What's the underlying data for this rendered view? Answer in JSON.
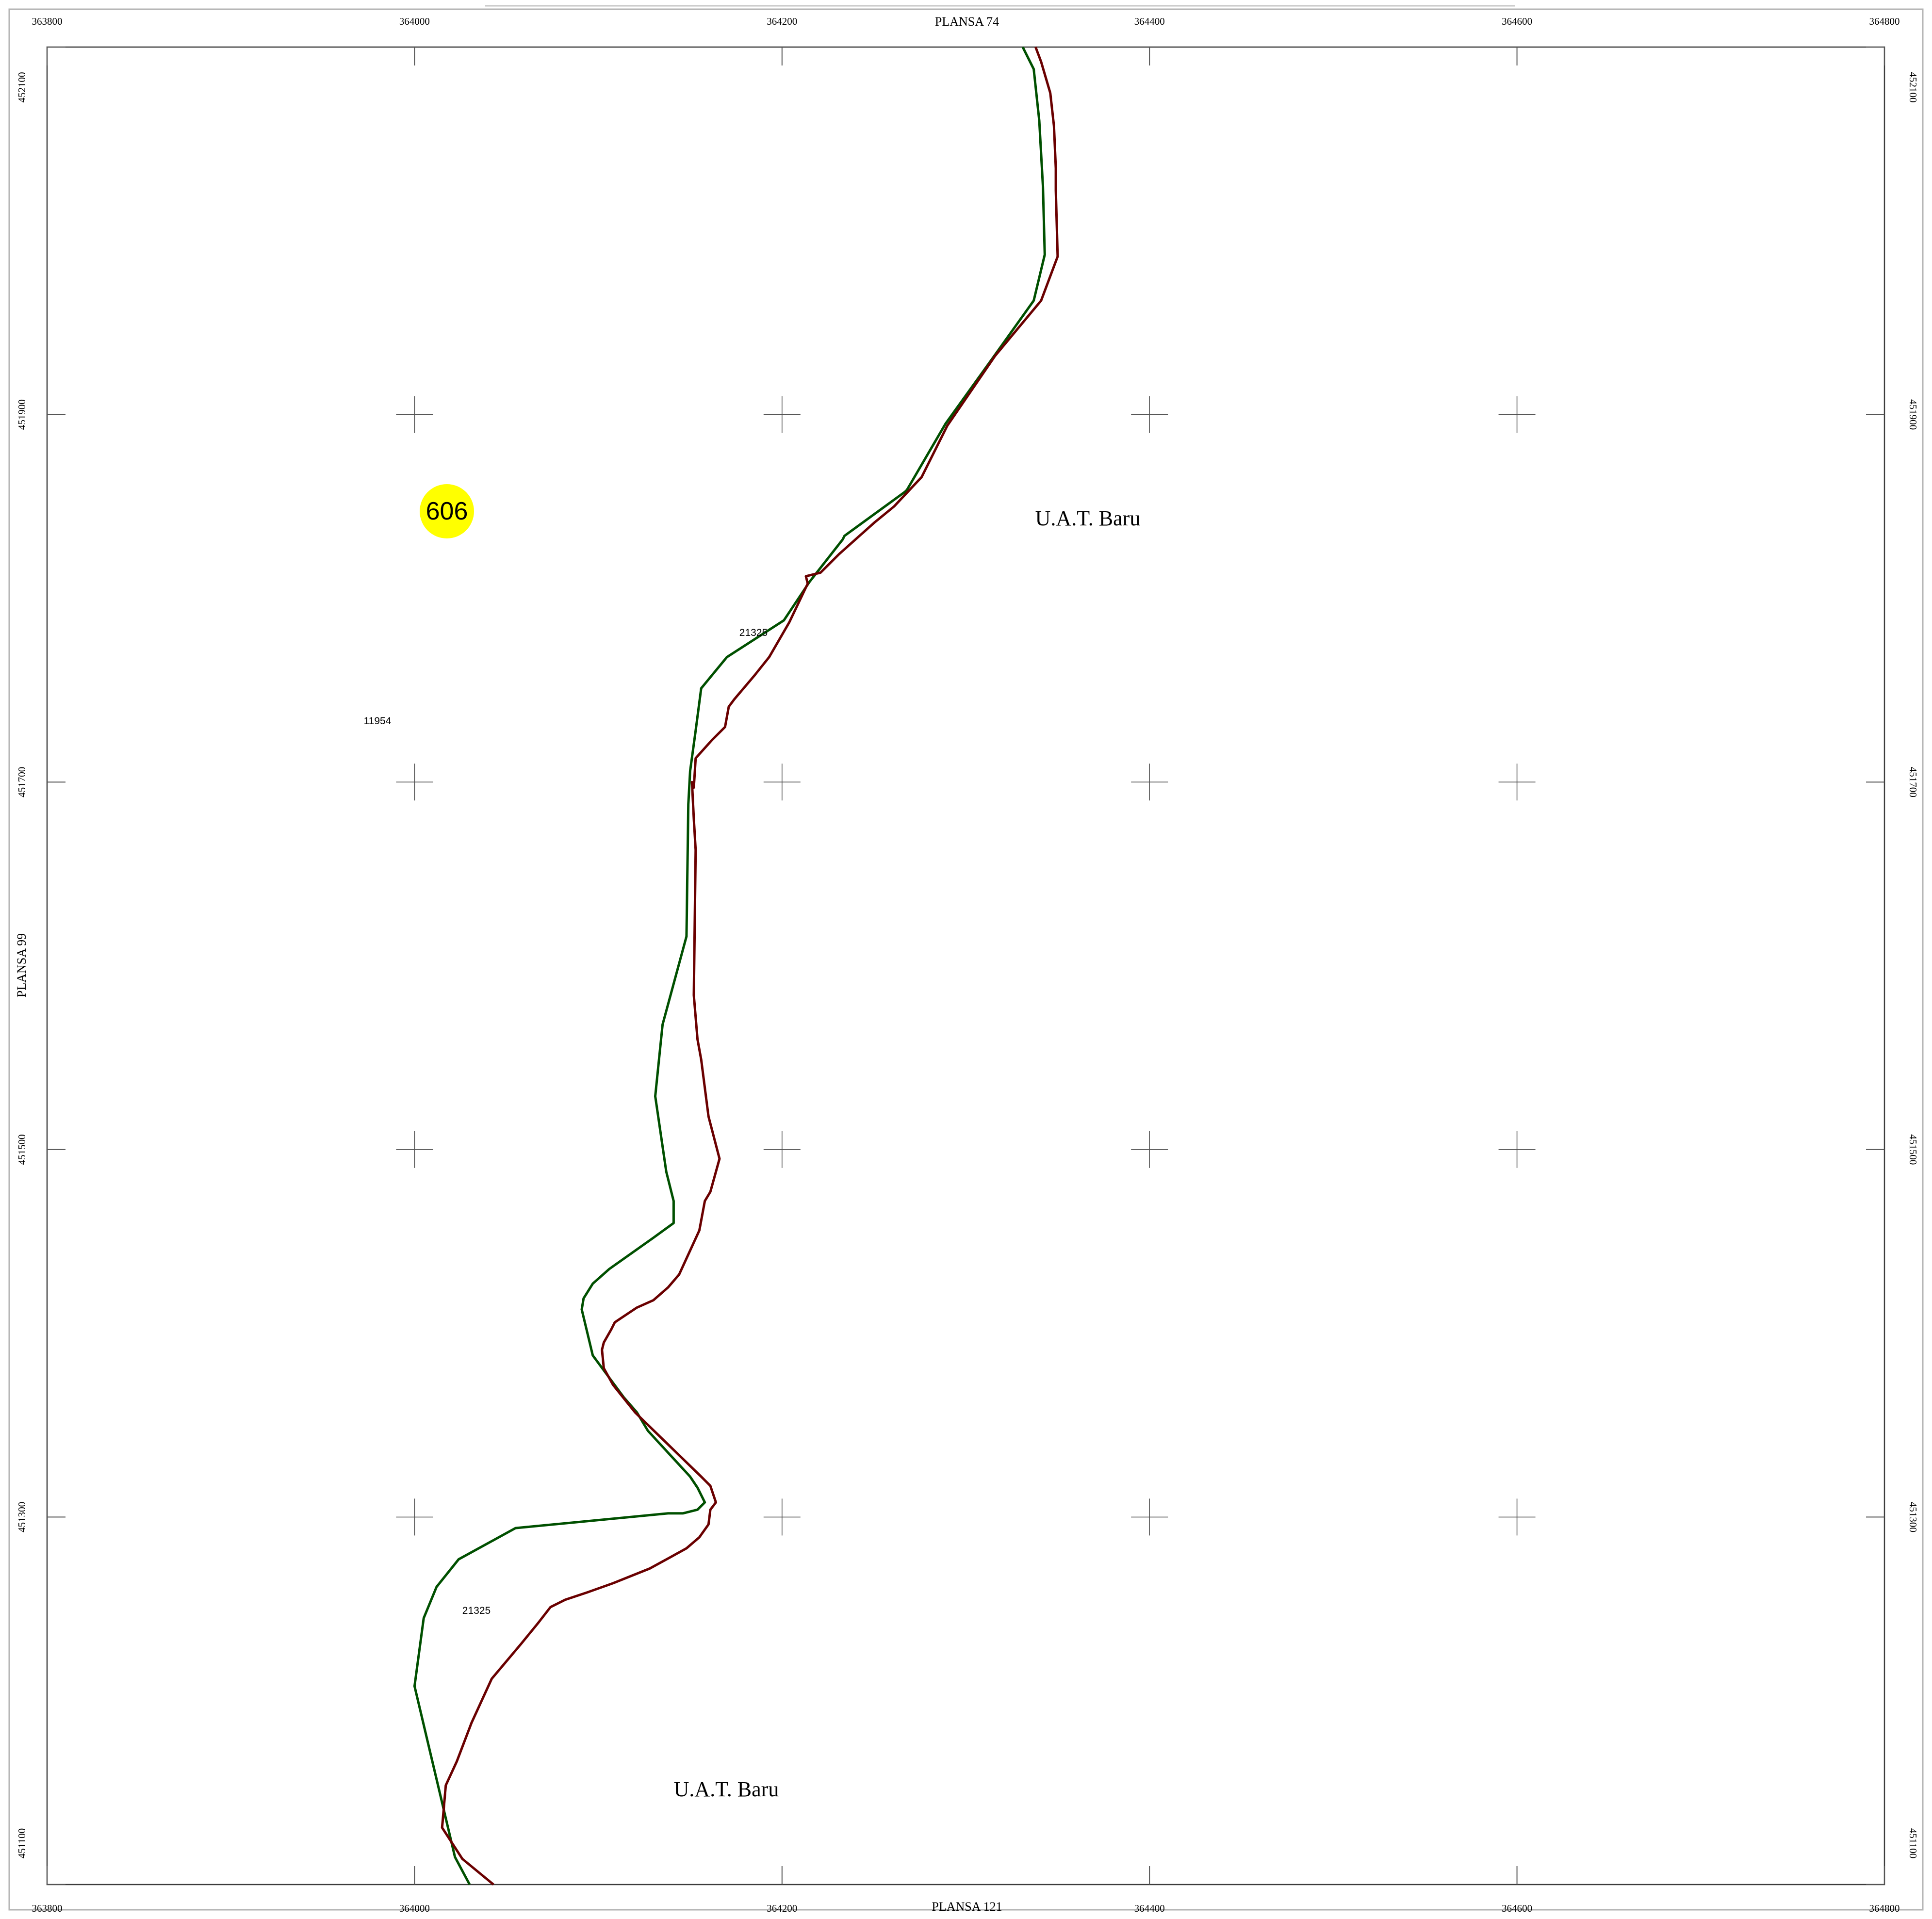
{
  "sheet": {
    "neighbors": {
      "top": "PLANSA  74",
      "bottom": "PLANSA  121",
      "left": "PLANSA  99"
    }
  },
  "grid": {
    "easting_ticks": [
      "363800",
      "364000",
      "364200",
      "364400",
      "364600",
      "364800"
    ],
    "northing_ticks": [
      "452100",
      "451900",
      "451700",
      "451500",
      "451300",
      "451100"
    ],
    "easting_range": [
      363800,
      364800
    ],
    "northing_range": [
      451100,
      452100
    ],
    "cross_marks_every": 200
  },
  "parcels": {
    "left_parcel_id": "11954",
    "strip_label_upper": "21325",
    "strip_label_lower": "21325"
  },
  "territories": {
    "upper_right": "U.A.T. Baru",
    "lower_center": "U.A.T. Baru"
  },
  "marker": {
    "number": "606",
    "color": "#ffff00"
  },
  "boundary_lines": [
    {
      "id": "green",
      "color": "#005000",
      "points": [
        [
          364331,
          452100
        ],
        [
          364337,
          452088
        ],
        [
          364340,
          452060
        ],
        [
          364342,
          452024
        ],
        [
          364343,
          451987
        ],
        [
          364337,
          451962
        ],
        [
          364312,
          451927
        ],
        [
          364289,
          451895
        ],
        [
          364268,
          451859
        ],
        [
          364267,
          451858
        ],
        [
          364234,
          451834
        ],
        [
          364233,
          451832
        ],
        [
          364215,
          451809
        ],
        [
          364201,
          451788
        ],
        [
          364170,
          451768
        ],
        [
          364156,
          451751
        ],
        [
          364153,
          451728
        ],
        [
          364150,
          451706
        ],
        [
          364149,
          451688
        ],
        [
          364148,
          451616
        ],
        [
          364135,
          451568
        ],
        [
          364131,
          451529
        ],
        [
          364137,
          451488
        ],
        [
          364141,
          451472
        ],
        [
          364141,
          451460
        ],
        [
          364130,
          451452
        ],
        [
          364106,
          451435
        ],
        [
          364097,
          451427
        ],
        [
          364092,
          451419
        ],
        [
          364091,
          451413
        ],
        [
          364097,
          451388
        ],
        [
          364114,
          451365
        ],
        [
          364121,
          451357
        ],
        [
          364127,
          451347
        ],
        [
          364150,
          451322
        ],
        [
          364154,
          451316
        ],
        [
          364158,
          451308
        ],
        [
          364154,
          451304
        ],
        [
          364146,
          451302
        ],
        [
          364138,
          451302
        ],
        [
          364055,
          451294
        ],
        [
          364024,
          451277
        ],
        [
          364012,
          451262
        ],
        [
          364005,
          451245
        ],
        [
          364000,
          451208
        ],
        [
          364022,
          451115
        ],
        [
          364030,
          451100
        ]
      ]
    },
    {
      "id": "darkred",
      "color": "#6a0000",
      "points": [
        [
          364338,
          452100
        ],
        [
          364341,
          452092
        ],
        [
          364346,
          452075
        ],
        [
          364348,
          452057
        ],
        [
          364349,
          452034
        ],
        [
          364349,
          452022
        ],
        [
          364350,
          451986
        ],
        [
          364341,
          451962
        ],
        [
          364316,
          451932
        ],
        [
          364290,
          451894
        ],
        [
          364276,
          451866
        ],
        [
          364261,
          451850
        ],
        [
          364250,
          451841
        ],
        [
          364231,
          451824
        ],
        [
          364221,
          451814
        ],
        [
          364213,
          451812
        ],
        [
          364214,
          451808
        ],
        [
          364204,
          451787
        ],
        [
          364193,
          451768
        ],
        [
          364185,
          451758
        ],
        [
          364174,
          451745
        ],
        [
          364171,
          451741
        ],
        [
          364169,
          451730
        ],
        [
          364162,
          451723
        ],
        [
          364153,
          451713
        ],
        [
          364152,
          451697
        ],
        [
          364151,
          451700
        ],
        [
          364152,
          451680
        ],
        [
          364153,
          451663
        ],
        [
          364152,
          451584
        ],
        [
          364154,
          451560
        ],
        [
          364156,
          451549
        ],
        [
          364160,
          451518
        ],
        [
          364166,
          451495
        ],
        [
          364161,
          451477
        ],
        [
          364158,
          451472
        ],
        [
          364155,
          451456
        ],
        [
          364144,
          451432
        ],
        [
          364138,
          451425
        ],
        [
          364130,
          451418
        ],
        [
          364121,
          451414
        ],
        [
          364109,
          451406
        ],
        [
          364107,
          451402
        ],
        [
          364103,
          451395
        ],
        [
          364102,
          451391
        ],
        [
          364103,
          451381
        ],
        [
          364108,
          451372
        ],
        [
          364120,
          451357
        ],
        [
          364156,
          451322
        ],
        [
          364161,
          451317
        ],
        [
          364164,
          451308
        ],
        [
          364161,
          451304
        ],
        [
          364160,
          451296
        ],
        [
          364155,
          451289
        ],
        [
          364148,
          451283
        ],
        [
          364139,
          451278
        ],
        [
          364128,
          451272
        ],
        [
          364108,
          451264
        ],
        [
          364094,
          451259
        ],
        [
          364082,
          451255
        ],
        [
          364074,
          451251
        ],
        [
          364067,
          451242
        ],
        [
          364058,
          451231
        ],
        [
          364042,
          451212
        ],
        [
          364031,
          451188
        ],
        [
          364023,
          451167
        ],
        [
          364017,
          451154
        ],
        [
          364015,
          451131
        ],
        [
          364026,
          451114
        ],
        [
          364043,
          451100
        ]
      ]
    }
  ]
}
